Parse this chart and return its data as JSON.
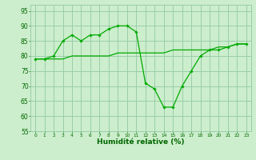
{
  "x": [
    0,
    1,
    2,
    3,
    4,
    5,
    6,
    7,
    8,
    9,
    10,
    11,
    12,
    13,
    14,
    15,
    16,
    17,
    18,
    19,
    20,
    21,
    22,
    23
  ],
  "y_curve": [
    79,
    79,
    80,
    85,
    87,
    85,
    87,
    87,
    89,
    90,
    90,
    88,
    71,
    69,
    63,
    63,
    70,
    75,
    80,
    82,
    82,
    83,
    84,
    84
  ],
  "y_trend": [
    79,
    79,
    79,
    79,
    80,
    80,
    80,
    80,
    80,
    81,
    81,
    81,
    81,
    81,
    81,
    82,
    82,
    82,
    82,
    82,
    83,
    83,
    84,
    84
  ],
  "line_color": "#00aa00",
  "bg_color": "#cceecc",
  "grid_color": "#99ccaa",
  "xlabel": "Humidité relative (%)",
  "xlabel_color": "#006600",
  "tick_color": "#006600",
  "ylim": [
    55,
    97
  ],
  "xlim": [
    -0.5,
    23.5
  ],
  "yticks": [
    55,
    60,
    65,
    70,
    75,
    80,
    85,
    90,
    95
  ],
  "xticks": [
    0,
    1,
    2,
    3,
    4,
    5,
    6,
    7,
    8,
    9,
    10,
    11,
    12,
    13,
    14,
    15,
    16,
    17,
    18,
    19,
    20,
    21,
    22,
    23
  ]
}
